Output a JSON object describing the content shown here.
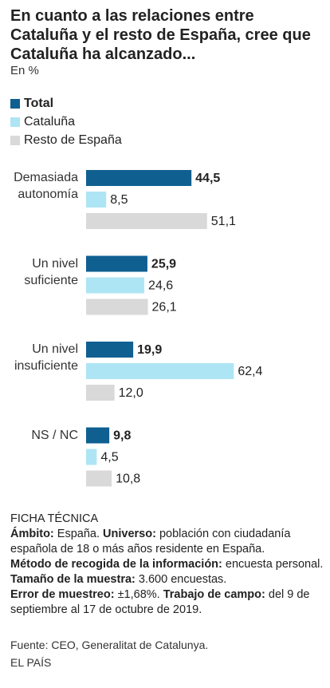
{
  "chart_data": {
    "type": "bar",
    "orientation": "horizontal",
    "title": "En cuanto a las relaciones entre Cataluña y el resto de España, cree que Cataluña ha alcanzado...",
    "subtitle": "En %",
    "categories": [
      "Demasiada autonomía",
      "Un nivel suficiente",
      "Un nivel insuficiente",
      "NS / NC"
    ],
    "series": [
      {
        "name": "Total",
        "color": "#0f5f91",
        "values": [
          44.5,
          25.9,
          19.9,
          9.8
        ],
        "value_labels": [
          "44,5",
          "25,9",
          "19,9",
          "9,8"
        ]
      },
      {
        "name": "Cataluña",
        "color": "#aee5f5",
        "values": [
          8.5,
          24.6,
          62.4,
          4.5
        ],
        "value_labels": [
          "8,5",
          "24,6",
          "62,4",
          "4,5"
        ]
      },
      {
        "name": "Resto de España",
        "color": "#d9d9d9",
        "values": [
          51.1,
          26.1,
          12.0,
          10.8
        ],
        "value_labels": [
          "51,1",
          "26,1",
          "12,0",
          "10,8"
        ]
      }
    ]
  },
  "ficha": {
    "title": "FICHA TÉCNICA",
    "items": [
      {
        "label": "Ámbito:",
        "text": "España."
      },
      {
        "label": "Universo:",
        "text": "población con ciudadanía española de 18 o más años residente en España."
      },
      {
        "label": "Método de recogida de la información:",
        "text": "encuesta personal."
      },
      {
        "label": "Tamaño de la muestra:",
        "text": "3.600 encuestas."
      },
      {
        "label": "Error de muestreo:",
        "text": "±1,68%."
      },
      {
        "label": "Trabajo de campo:",
        "text": "del 9 de septiembre al 17 de octubre de 2019."
      }
    ]
  },
  "source": "Fuente: CEO, Generalitat de Catalunya.",
  "brand": "EL PAÍS"
}
